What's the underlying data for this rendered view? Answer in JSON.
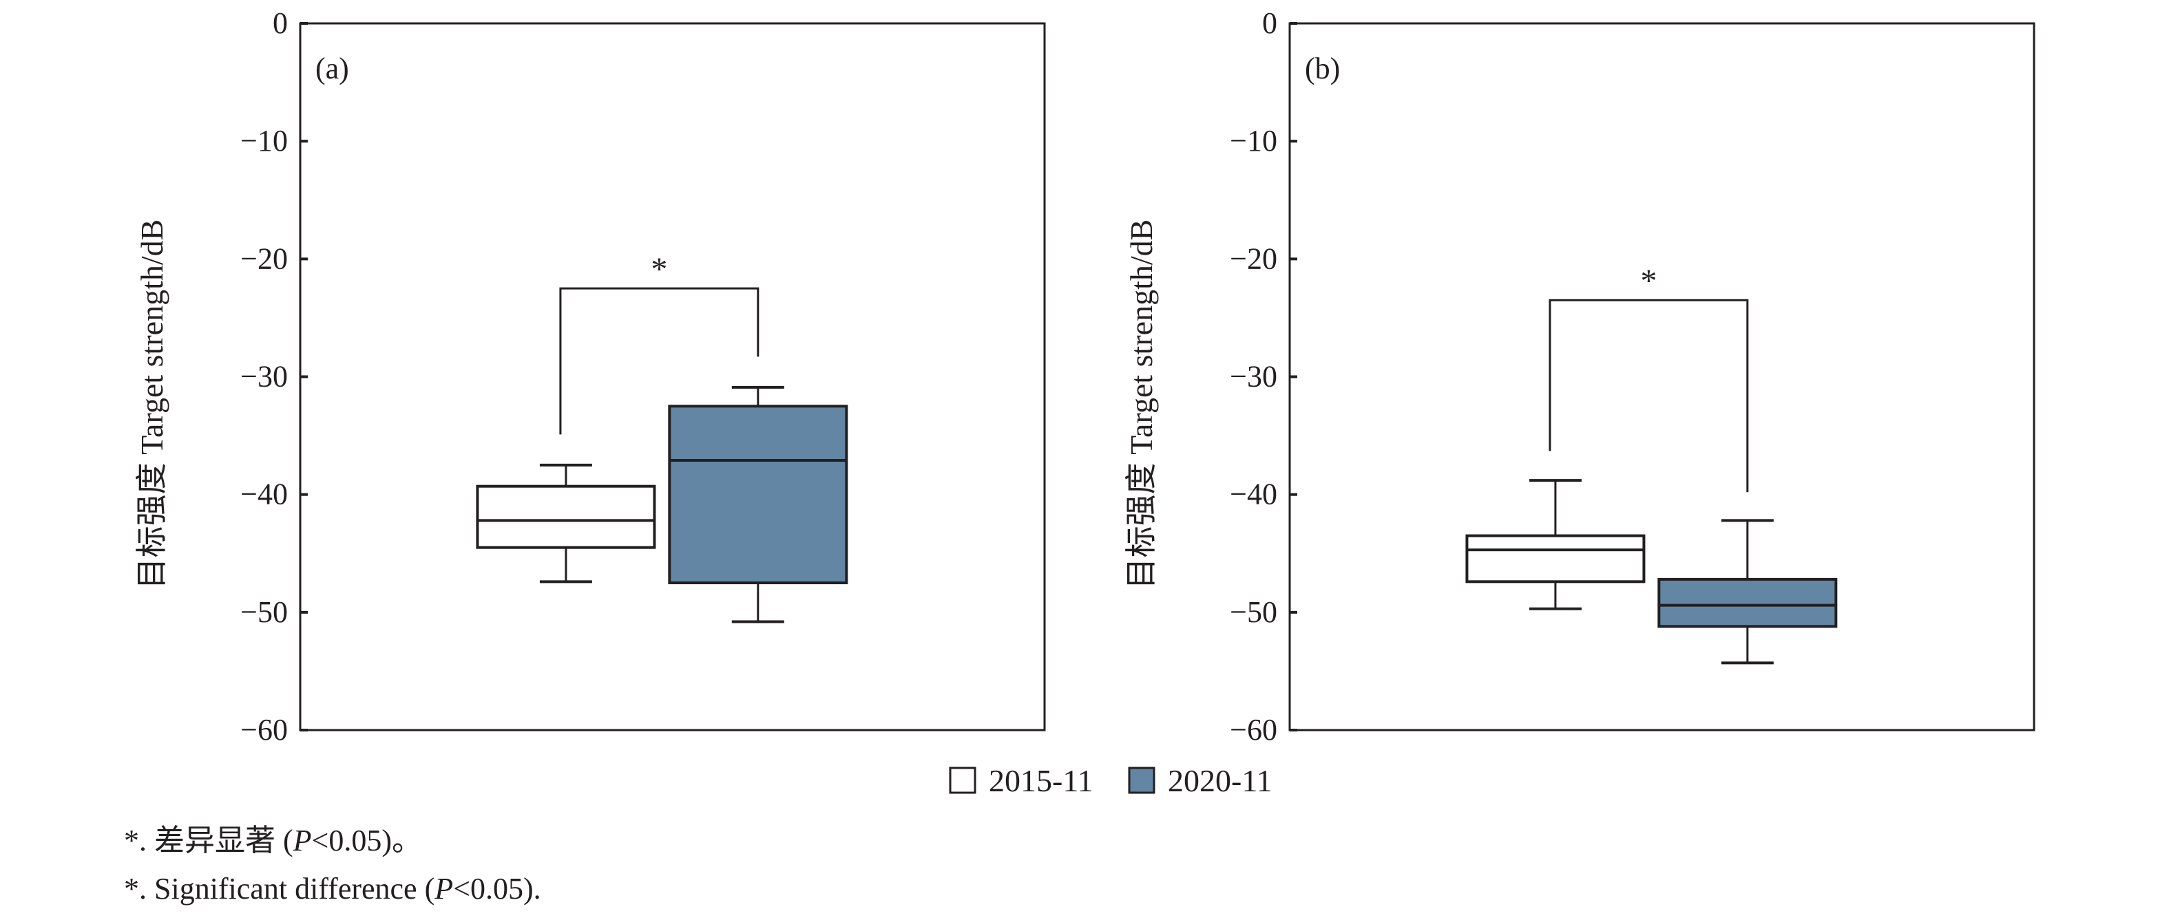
{
  "chart_data": [
    {
      "type": "boxplot",
      "panel_label": "(a)",
      "ylabel": "目标强度 Target strength/dB",
      "ylim": [
        -60,
        0
      ],
      "yticks": [
        0,
        -10,
        -20,
        -30,
        -40,
        -50,
        -60
      ],
      "ytick_labels": [
        "0",
        "−10",
        "−20",
        "−30",
        "−40",
        "−50",
        "−60"
      ],
      "series": [
        {
          "name": "2015-11",
          "whisker_high": -37.5,
          "q3": -39.3,
          "median": -42.2,
          "q1": -44.5,
          "whisker_low": -47.4
        },
        {
          "name": "2020-11",
          "whisker_high": -30.9,
          "q3": -32.5,
          "median": -37.1,
          "q1": -47.5,
          "whisker_low": -50.8
        }
      ],
      "significance": {
        "label": "*",
        "bar_y": -22.5,
        "left_end": -34.9,
        "right_end": -28.3
      }
    },
    {
      "type": "boxplot",
      "panel_label": "(b)",
      "ylabel": "目标强度 Target strength/dB",
      "ylim": [
        -60,
        0
      ],
      "yticks": [
        0,
        -10,
        -20,
        -30,
        -40,
        -50,
        -60
      ],
      "ytick_labels": [
        "0",
        "−10",
        "−20",
        "−30",
        "−40",
        "−50",
        "−60"
      ],
      "series": [
        {
          "name": "2015-11",
          "whisker_high": -38.8,
          "q3": -43.5,
          "median": -44.7,
          "q1": -47.4,
          "whisker_low": -49.7
        },
        {
          "name": "2020-11",
          "whisker_high": -42.2,
          "q3": -47.2,
          "median": -49.4,
          "q1": -51.2,
          "whisker_low": -54.3
        }
      ],
      "significance": {
        "label": "*",
        "bar_y": -23.5,
        "left_end": -36.3,
        "right_end": -39.8
      }
    }
  ],
  "legend": {
    "placement": "bottom-center",
    "items": [
      {
        "label": "2015-11",
        "color": "#ffffff"
      },
      {
        "label": "2020-11",
        "color": "#6286a4"
      }
    ]
  },
  "notes": {
    "cn_prefix": "*. 差异显著 (",
    "cn_p": "P",
    "cn_suffix": "<0.05)。",
    "en_prefix": "*. Significant difference (",
    "en_p": "P",
    "en_suffix": "<0.05)."
  },
  "colors": {
    "stroke": "#231f20",
    "fill_2020": "#6286a4",
    "fill_2015": "#ffffff"
  }
}
